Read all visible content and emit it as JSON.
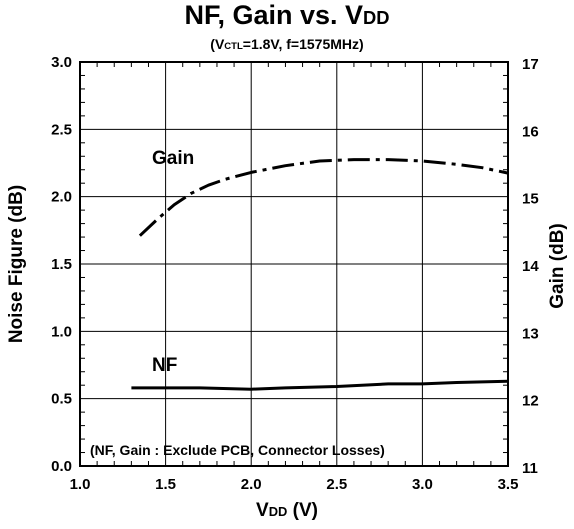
{
  "chart_data": {
    "type": "line",
    "title_main": "NF, Gain vs. V",
    "title_sub": "DD",
    "subtitle_pre": "(V",
    "subtitle_sub": "CTL",
    "subtitle_post": "=1.8V, f=1575MHz)",
    "xlabel_main": "V",
    "xlabel_sub": "DD",
    "xlabel_post": " (V)",
    "ylabel_left": "Noise Figure (dB)",
    "ylabel_right": "Gain (dB)",
    "xlim": [
      1.0,
      3.5
    ],
    "ylim_left": [
      0.0,
      3.0
    ],
    "ylim_right": [
      11,
      17
    ],
    "x_ticks": [
      "1.0",
      "1.5",
      "2.0",
      "2.5",
      "3.0",
      "3.5"
    ],
    "y_left_ticks": [
      "0.0",
      "0.5",
      "1.0",
      "1.5",
      "2.0",
      "2.5",
      "3.0"
    ],
    "y_right_ticks": [
      "11",
      "12",
      "13",
      "14",
      "15",
      "16",
      "17"
    ],
    "grid": true,
    "annotation": "(NF, Gain : Exclude PCB, Connector Losses)",
    "series": [
      {
        "name": "Gain",
        "axis": "right",
        "style": "dash-dot",
        "x": [
          1.35,
          1.45,
          1.55,
          1.65,
          1.75,
          1.85,
          2.0,
          2.2,
          2.4,
          2.6,
          2.8,
          3.0,
          3.2,
          3.35,
          3.5
        ],
        "y": [
          14.42,
          14.66,
          14.88,
          15.05,
          15.17,
          15.26,
          15.36,
          15.46,
          15.53,
          15.55,
          15.55,
          15.53,
          15.48,
          15.43,
          15.35
        ]
      },
      {
        "name": "NF",
        "axis": "left",
        "style": "solid",
        "x": [
          1.3,
          1.5,
          1.7,
          2.0,
          2.2,
          2.5,
          2.8,
          3.0,
          3.2,
          3.5
        ],
        "y": [
          0.58,
          0.58,
          0.58,
          0.57,
          0.58,
          0.59,
          0.61,
          0.61,
          0.62,
          0.63
        ]
      }
    ]
  }
}
